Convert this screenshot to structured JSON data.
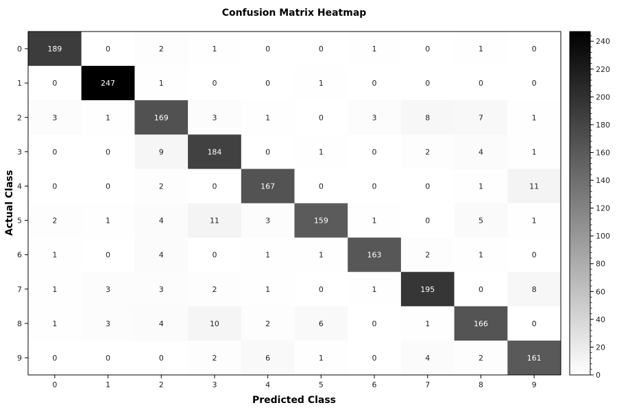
{
  "chart_data": {
    "type": "heatmap",
    "title": "Confusion Matrix Heatmap",
    "xlabel": "Predicted Class",
    "ylabel": "Actual Class",
    "x_categories": [
      "0",
      "1",
      "2",
      "3",
      "4",
      "5",
      "6",
      "7",
      "8",
      "9"
    ],
    "y_categories": [
      "0",
      "1",
      "2",
      "3",
      "4",
      "5",
      "6",
      "7",
      "8",
      "9"
    ],
    "values": [
      [
        189,
        0,
        2,
        1,
        0,
        0,
        1,
        0,
        1,
        0
      ],
      [
        0,
        247,
        1,
        0,
        0,
        1,
        0,
        0,
        0,
        0
      ],
      [
        3,
        1,
        169,
        3,
        1,
        0,
        3,
        8,
        7,
        1
      ],
      [
        0,
        0,
        9,
        184,
        0,
        1,
        0,
        2,
        4,
        1
      ],
      [
        0,
        0,
        2,
        0,
        167,
        0,
        0,
        0,
        1,
        11
      ],
      [
        2,
        1,
        4,
        11,
        3,
        159,
        1,
        0,
        5,
        1
      ],
      [
        1,
        0,
        4,
        0,
        1,
        1,
        163,
        2,
        1,
        0
      ],
      [
        1,
        3,
        3,
        2,
        1,
        0,
        1,
        195,
        0,
        8
      ],
      [
        1,
        3,
        4,
        10,
        2,
        6,
        0,
        1,
        166,
        0
      ],
      [
        0,
        0,
        0,
        2,
        6,
        1,
        0,
        4,
        2,
        161
      ]
    ],
    "colorbar": {
      "range": [
        0,
        247
      ],
      "ticks": [
        0,
        20,
        40,
        60,
        80,
        100,
        120,
        140,
        160,
        180,
        200,
        220,
        240
      ],
      "colormap": "white-to-black",
      "color_low": "#ffffff",
      "color_high": "#000000"
    },
    "grid": false,
    "legend": "colorbar-right"
  }
}
